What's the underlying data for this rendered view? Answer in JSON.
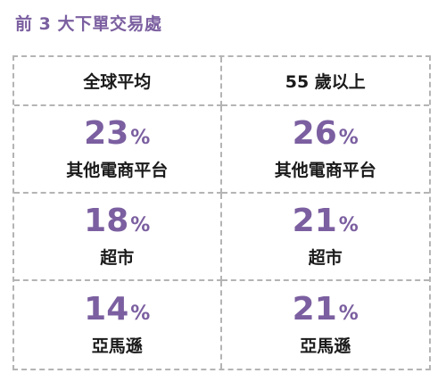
{
  "title": "前 3 大下單交易處",
  "columns": [
    "全球平均",
    "55 歲以上"
  ],
  "rows": [
    {
      "label": "其他電商平台",
      "values": [
        {
          "number": "23",
          "unit": "%"
        },
        {
          "number": "26",
          "unit": "%"
        }
      ]
    },
    {
      "label": "超市",
      "values": [
        {
          "number": "18",
          "unit": "%"
        },
        {
          "number": "21",
          "unit": "%"
        }
      ]
    },
    {
      "label": "亞馬遜",
      "values": [
        {
          "number": "14",
          "unit": "%"
        },
        {
          "number": "21",
          "unit": "%"
        }
      ]
    }
  ],
  "colors": {
    "accent": "#7b5fa0",
    "text": "#1a1a1a",
    "border": "#b4b4b4"
  }
}
